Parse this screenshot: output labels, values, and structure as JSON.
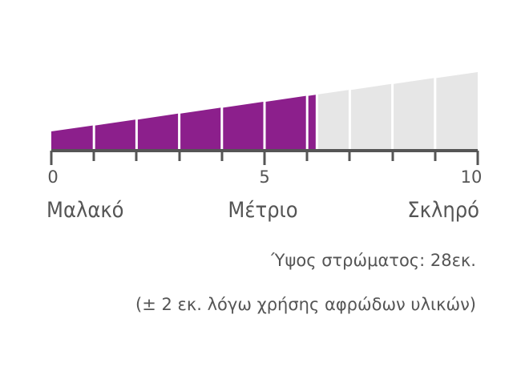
{
  "scale": {
    "min": 0,
    "max": 10,
    "value": 6.2,
    "segments": 10,
    "tick_labels": [
      "0",
      "5",
      "10"
    ],
    "words": [
      "Μαλακό",
      "Μέτριο",
      "Σκληρό"
    ]
  },
  "colors": {
    "filled": "#8c1f8c",
    "empty": "#e6e6e6",
    "axis": "#555555",
    "text": "#555555"
  },
  "notes": {
    "height": "Ύψος στρώματος: 28εκ.",
    "tolerance": "(± 2 εκ. λόγω χρήσης αφρώδων υλικών)"
  }
}
